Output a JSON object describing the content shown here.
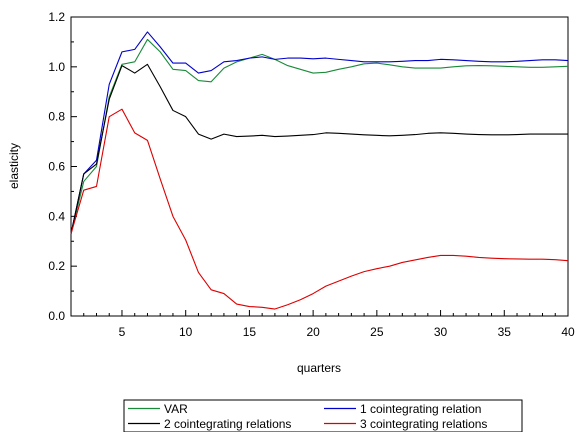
{
  "chart_data": {
    "type": "line",
    "xlabel": "quarters",
    "ylabel": "elasticity",
    "xlim": [
      1,
      40
    ],
    "ylim": [
      0.0,
      1.2
    ],
    "xticks": [
      5,
      10,
      15,
      20,
      25,
      30,
      35,
      40
    ],
    "yticks": [
      0.0,
      0.2,
      0.4,
      0.6,
      0.8,
      1.0,
      1.2
    ],
    "grid": false,
    "legend_position": "bottom",
    "x": [
      1,
      2,
      3,
      4,
      5,
      6,
      7,
      8,
      9,
      10,
      11,
      12,
      13,
      14,
      15,
      16,
      17,
      18,
      19,
      20,
      21,
      22,
      23,
      24,
      25,
      26,
      27,
      28,
      29,
      30,
      31,
      32,
      33,
      34,
      35,
      36,
      37,
      38,
      39,
      40
    ],
    "series": [
      {
        "name": "VAR",
        "color": "#1a8a3a",
        "values": [
          0.33,
          0.54,
          0.6,
          0.88,
          1.01,
          1.02,
          1.11,
          1.06,
          0.99,
          0.985,
          0.945,
          0.94,
          0.995,
          1.02,
          1.035,
          1.05,
          1.03,
          1.005,
          0.99,
          0.975,
          0.978,
          0.99,
          1.0,
          1.012,
          1.015,
          1.008,
          1.0,
          0.995,
          0.995,
          0.995,
          1.0,
          1.004,
          1.005,
          1.004,
          1.002,
          1.0,
          0.998,
          0.998,
          1.0,
          1.002
        ]
      },
      {
        "name": "1 cointegrating relation",
        "color": "#0000cc",
        "values": [
          0.33,
          0.57,
          0.625,
          0.93,
          1.06,
          1.07,
          1.14,
          1.08,
          1.015,
          1.015,
          0.975,
          0.985,
          1.02,
          1.025,
          1.035,
          1.04,
          1.03,
          1.035,
          1.035,
          1.032,
          1.035,
          1.03,
          1.025,
          1.02,
          1.02,
          1.02,
          1.022,
          1.025,
          1.025,
          1.03,
          1.028,
          1.025,
          1.022,
          1.02,
          1.02,
          1.022,
          1.025,
          1.028,
          1.028,
          1.025
        ]
      },
      {
        "name": "2 cointegrating relations",
        "color": "#000000",
        "values": [
          0.33,
          0.57,
          0.61,
          0.87,
          1.005,
          0.975,
          1.01,
          0.92,
          0.825,
          0.8,
          0.73,
          0.71,
          0.73,
          0.72,
          0.722,
          0.725,
          0.72,
          0.722,
          0.725,
          0.728,
          0.735,
          0.733,
          0.73,
          0.727,
          0.725,
          0.723,
          0.725,
          0.728,
          0.733,
          0.735,
          0.733,
          0.73,
          0.728,
          0.727,
          0.727,
          0.728,
          0.73,
          0.73,
          0.73,
          0.73
        ]
      },
      {
        "name": "3 cointegrating relations",
        "color": "#dd0000",
        "values": [
          0.33,
          0.505,
          0.52,
          0.8,
          0.83,
          0.735,
          0.705,
          0.55,
          0.4,
          0.305,
          0.175,
          0.105,
          0.09,
          0.048,
          0.038,
          0.035,
          0.028,
          0.045,
          0.065,
          0.09,
          0.12,
          0.14,
          0.16,
          0.178,
          0.19,
          0.2,
          0.215,
          0.225,
          0.235,
          0.243,
          0.243,
          0.24,
          0.235,
          0.232,
          0.23,
          0.229,
          0.228,
          0.228,
          0.226,
          0.222
        ]
      }
    ]
  }
}
